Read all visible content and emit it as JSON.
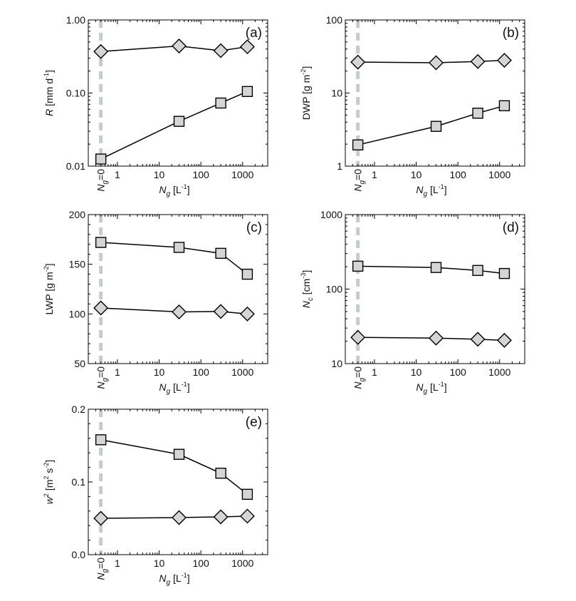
{
  "chart_data": [
    {
      "type": "line",
      "panel_label": "(a)",
      "ylabel": "R [mm d-1]",
      "ylabel_parts": {
        "var": "R",
        "unit_pre": "[mm d",
        "unit_sup": "-1",
        "unit_post": "]"
      },
      "xlabel": "Ng [L-1]",
      "yscale": "log",
      "ylim": [
        0.01,
        1.0
      ],
      "yticks": [
        {
          "value": 0.01,
          "label": "0.01"
        },
        {
          "value": 0.1,
          "label": "0.10"
        },
        {
          "value": 1.0,
          "label": "1.00"
        }
      ],
      "series": [
        {
          "marker": "diamond",
          "x": [
            "Ng=0",
            30,
            300,
            1300
          ],
          "y": [
            0.37,
            0.44,
            0.38,
            0.43
          ]
        },
        {
          "marker": "square",
          "x": [
            "Ng=0",
            30,
            300,
            1300
          ],
          "y": [
            0.0125,
            0.041,
            0.073,
            0.105
          ]
        }
      ]
    },
    {
      "type": "line",
      "panel_label": "(b)",
      "ylabel": "DWP [g m-2]",
      "ylabel_parts": {
        "var": "DWP",
        "unit_pre": "[g m",
        "unit_sup": "-2",
        "unit_post": "]"
      },
      "xlabel": "Ng [L-1]",
      "yscale": "log",
      "ylim": [
        1,
        100
      ],
      "yticks": [
        {
          "value": 1,
          "label": "1"
        },
        {
          "value": 10,
          "label": "10"
        },
        {
          "value": 100,
          "label": "100"
        }
      ],
      "series": [
        {
          "marker": "diamond",
          "x": [
            "Ng=0",
            30,
            300,
            1300
          ],
          "y": [
            26.5,
            26.0,
            27.0,
            28.0
          ]
        },
        {
          "marker": "square",
          "x": [
            "Ng=0",
            30,
            300,
            1300
          ],
          "y": [
            1.95,
            3.5,
            5.3,
            6.7
          ]
        }
      ]
    },
    {
      "type": "line",
      "panel_label": "(c)",
      "ylabel": "LWP [g m-2]",
      "ylabel_parts": {
        "var": "LWP",
        "unit_pre": "[g m",
        "unit_sup": "-2",
        "unit_post": "]"
      },
      "xlabel": "Ng [L-1]",
      "yscale": "linear",
      "ylim": [
        50,
        200
      ],
      "yticks": [
        {
          "value": 50,
          "label": "50"
        },
        {
          "value": 100,
          "label": "100"
        },
        {
          "value": 150,
          "label": "150"
        },
        {
          "value": 200,
          "label": "200"
        }
      ],
      "series": [
        {
          "marker": "square",
          "x": [
            "Ng=0",
            30,
            300,
            1300
          ],
          "y": [
            172,
            167,
            161,
            140
          ]
        },
        {
          "marker": "diamond",
          "x": [
            "Ng=0",
            30,
            300,
            1300
          ],
          "y": [
            106,
            102,
            102.5,
            100
          ]
        }
      ]
    },
    {
      "type": "line",
      "panel_label": "(d)",
      "ylabel": "Nc [cm-3]",
      "ylabel_parts": {
        "var": "N",
        "var_sub": "c",
        "unit_pre": "[cm",
        "unit_sup": "-3",
        "unit_post": "]"
      },
      "xlabel": "Ng [L-1]",
      "yscale": "log",
      "ylim": [
        10,
        1000
      ],
      "yticks": [
        {
          "value": 10,
          "label": "10"
        },
        {
          "value": 100,
          "label": "100"
        },
        {
          "value": 1000,
          "label": "1000"
        }
      ],
      "series": [
        {
          "marker": "square",
          "x": [
            "Ng=0",
            30,
            300,
            1300
          ],
          "y": [
            203,
            195,
            178,
            162
          ]
        },
        {
          "marker": "diamond",
          "x": [
            "Ng=0",
            30,
            300,
            1300
          ],
          "y": [
            22.5,
            22.0,
            21.2,
            20.5
          ]
        }
      ]
    },
    {
      "type": "line",
      "panel_label": "(e)",
      "ylabel": "w2 [m2 s-2]",
      "ylabel_parts": {
        "var": "w",
        "var_sup": "2",
        "unit_pre": "[m",
        "unit_sup": "2",
        "unit_mid": " s",
        "unit_sup2": "-2",
        "unit_post": "]"
      },
      "xlabel": "Ng [L-1]",
      "yscale": "linear",
      "ylim": [
        0.0,
        0.2
      ],
      "yticks": [
        {
          "value": 0.0,
          "label": "0.0"
        },
        {
          "value": 0.1,
          "label": "0.1"
        },
        {
          "value": 0.2,
          "label": "0.2"
        }
      ],
      "series": [
        {
          "marker": "square",
          "x": [
            "Ng=0",
            30,
            300,
            1300
          ],
          "y": [
            0.158,
            0.138,
            0.112,
            0.083
          ]
        },
        {
          "marker": "diamond",
          "x": [
            "Ng=0",
            30,
            300,
            1300
          ],
          "y": [
            0.05,
            0.051,
            0.052,
            0.053
          ]
        }
      ]
    }
  ],
  "x_axis": {
    "scale": "log",
    "xlim": [
      0.2,
      4000
    ],
    "ticks": [
      {
        "value": 1,
        "label": "1"
      },
      {
        "value": 10,
        "label": "10"
      },
      {
        "value": 100,
        "label": "100"
      },
      {
        "value": 1000,
        "label": "1000"
      }
    ],
    "zero_label": {
      "var": "N",
      "sub": "g",
      "rest": "=0"
    },
    "label": {
      "var": "N",
      "sub": "g",
      "unit_pre": " [L",
      "unit_sup": "-1",
      "unit_post": "]"
    },
    "zero_position_value": 0.4
  },
  "colors": {
    "marker_fill": "#d3d6d5",
    "marker_stroke": "#000000",
    "line": "#000000",
    "zero_line": "#c5cdcb",
    "axis": "#000000"
  }
}
